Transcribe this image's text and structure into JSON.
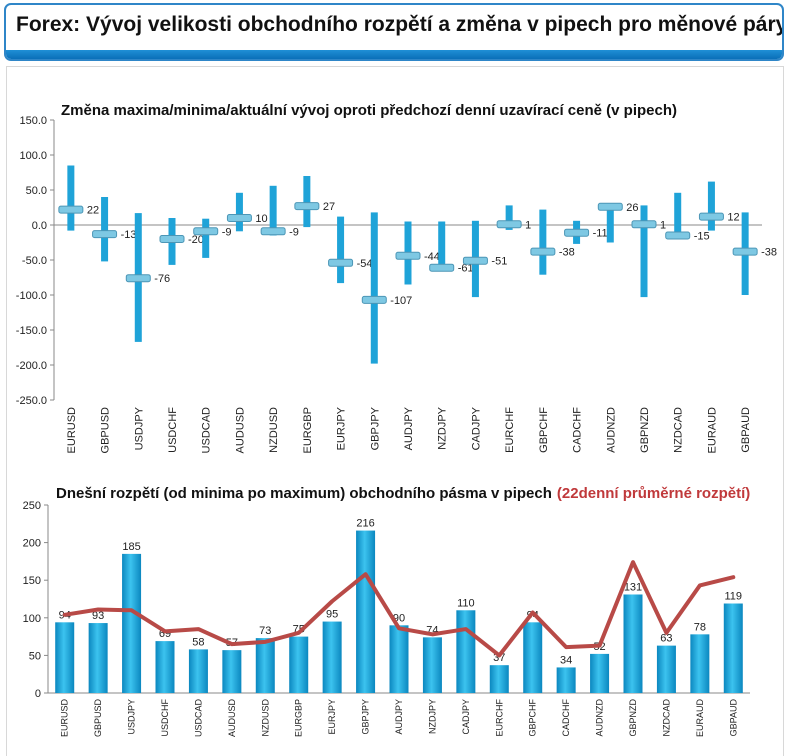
{
  "header": {
    "title": "Forex: Vývoj velikosti obchodního rozpětí a změna v pipech pro měnové páry"
  },
  "colors": {
    "accent": "#1fa3d8",
    "bar_dark": "#0b87bf",
    "avg_line": "#b84a47",
    "header_border": "#2f86c8",
    "tick_marker": "#7ec8e3"
  },
  "chart_data": [
    {
      "type": "bar",
      "title": "Změna maxima/minima/aktuální vývoj oproti předchozí denní uzavírací ceně (v pipech)",
      "categories": [
        "EURUSD",
        "GBPUSD",
        "USDJPY",
        "USDCHF",
        "USDCAD",
        "AUDUSD",
        "NZDUSD",
        "EURGBP",
        "EURJPY",
        "GBPJPY",
        "AUDJPY",
        "NZDJPY",
        "CADJPY",
        "EURCHF",
        "GBPCHF",
        "CADCHF",
        "AUDNZD",
        "GBPNZD",
        "NZDCAD",
        "EURAUD",
        "GBPAUD"
      ],
      "high": [
        85,
        40,
        17,
        10,
        9,
        46,
        56,
        70,
        12,
        18,
        5,
        5,
        6,
        28,
        22,
        6,
        30,
        28,
        46,
        62,
        18
      ],
      "low": [
        -8,
        -52,
        -167,
        -57,
        -47,
        -9,
        -15,
        -3,
        -83,
        -198,
        -85,
        -65,
        -103,
        -7,
        -71,
        -27,
        -25,
        -103,
        -18,
        -8,
        -100
      ],
      "current": [
        22,
        -13,
        -76,
        -20,
        -9,
        10,
        -9,
        27,
        -54,
        -107,
        -44,
        -61,
        -51,
        1,
        -38,
        -11,
        26,
        1,
        -15,
        12,
        -38
      ],
      "current_labels": [
        "22",
        "-13",
        "-76",
        "-20",
        "-9",
        "10",
        "-9",
        "27",
        "-54",
        "-107",
        "-44",
        "-61",
        "-51",
        "1",
        "-38",
        "-11",
        "26",
        "1",
        "-15",
        "12",
        "-38"
      ],
      "ylim": [
        -250,
        150
      ],
      "yticks": [
        150,
        100,
        50,
        0,
        -50,
        -100,
        -150,
        -200,
        -250
      ],
      "ytick_labels": [
        "150.0",
        "100.0",
        "50.0",
        "0.0",
        "-50.0",
        "-100.0",
        "-150.0",
        "-200.0",
        "-250.0"
      ],
      "grid": false
    },
    {
      "type": "bar",
      "title": "Dnešní rozpětí (od minima po maximum) obchodního pásma v pipech",
      "title_highlight": "(22denní průměrné rozpětí)",
      "categories": [
        "EURUSD",
        "GBPUSD",
        "USDJPY",
        "USDCHF",
        "USDCAD",
        "AUDUSD",
        "NZDUSD",
        "EURGBP",
        "EURJPY",
        "GBPJPY",
        "AUDJPY",
        "NZDJPY",
        "CADJPY",
        "EURCHF",
        "GBPCHF",
        "CADCHF",
        "AUDNZD",
        "GBPNZD",
        "NZDCAD",
        "EURAUD",
        "GBPAUD"
      ],
      "values": [
        94,
        93,
        185,
        69,
        58,
        57,
        73,
        75,
        95,
        216,
        90,
        74,
        110,
        37,
        94,
        34,
        52,
        131,
        63,
        78,
        119
      ],
      "value_labels": [
        "94",
        "93",
        "185",
        "69",
        "58",
        "57",
        "73",
        "75",
        "95",
        "216",
        "90",
        "74",
        "110",
        "37",
        "94",
        "34",
        "52",
        "131",
        "63",
        "78",
        "119"
      ],
      "avg_22d": [
        104,
        111,
        110,
        82,
        85,
        65,
        68,
        80,
        122,
        158,
        86,
        78,
        85,
        50,
        107,
        61,
        63,
        174,
        80,
        143,
        154
      ],
      "ylim": [
        0,
        250
      ],
      "yticks": [
        0,
        50,
        100,
        150,
        200,
        250
      ],
      "ytick_labels": [
        "0",
        "50",
        "100",
        "150",
        "200",
        "250"
      ],
      "grid": false
    }
  ]
}
